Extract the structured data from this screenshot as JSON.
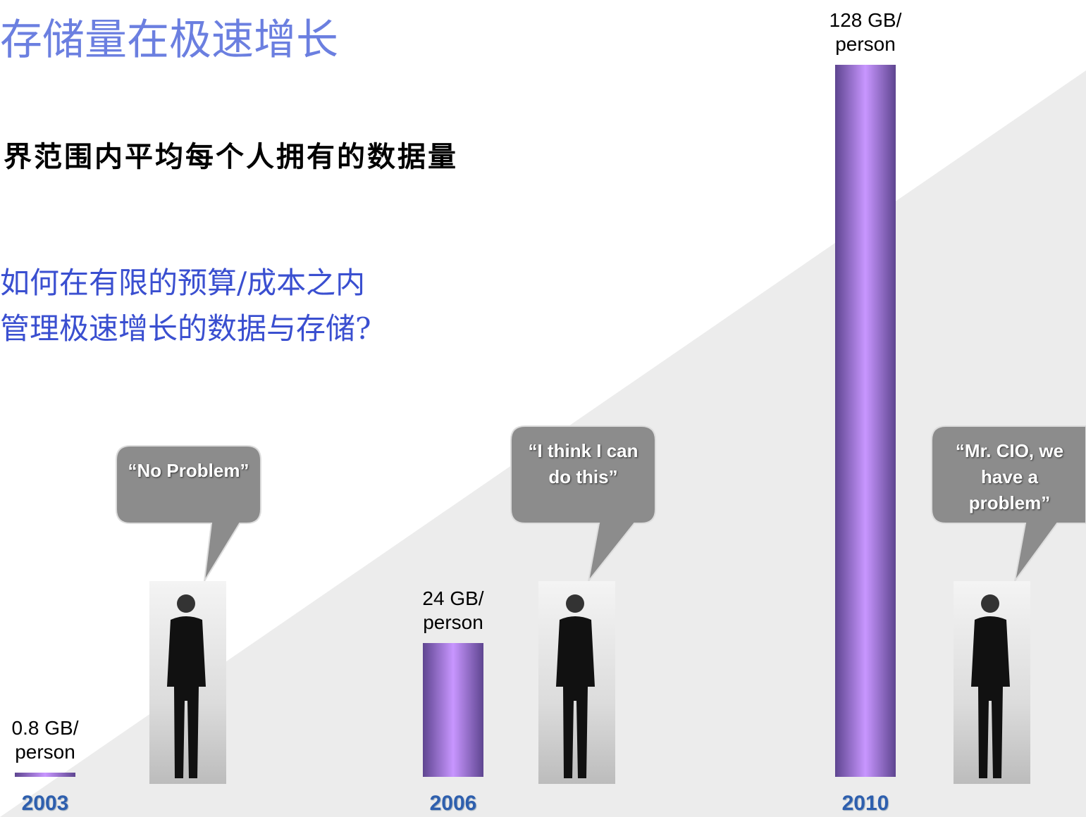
{
  "slide": {
    "title": "存储量在极速增长",
    "subtitle": "界范围内平均每个人拥有的数据量",
    "question": [
      "如何在有限的预算/成本之内",
      "管理极速增长的数据与存储?"
    ]
  },
  "chart_data": {
    "type": "bar",
    "categories": [
      "2003",
      "2006",
      "2010"
    ],
    "values": [
      0.8,
      24,
      128
    ],
    "value_labels": [
      "0.8 GB/ person",
      "24 GB/ person",
      "128 GB/ person"
    ],
    "color": "#c896ff",
    "annotations": [
      "“No Problem”",
      "“I think I can do this”",
      "“Mr. CIO, we have a problem”"
    ]
  }
}
